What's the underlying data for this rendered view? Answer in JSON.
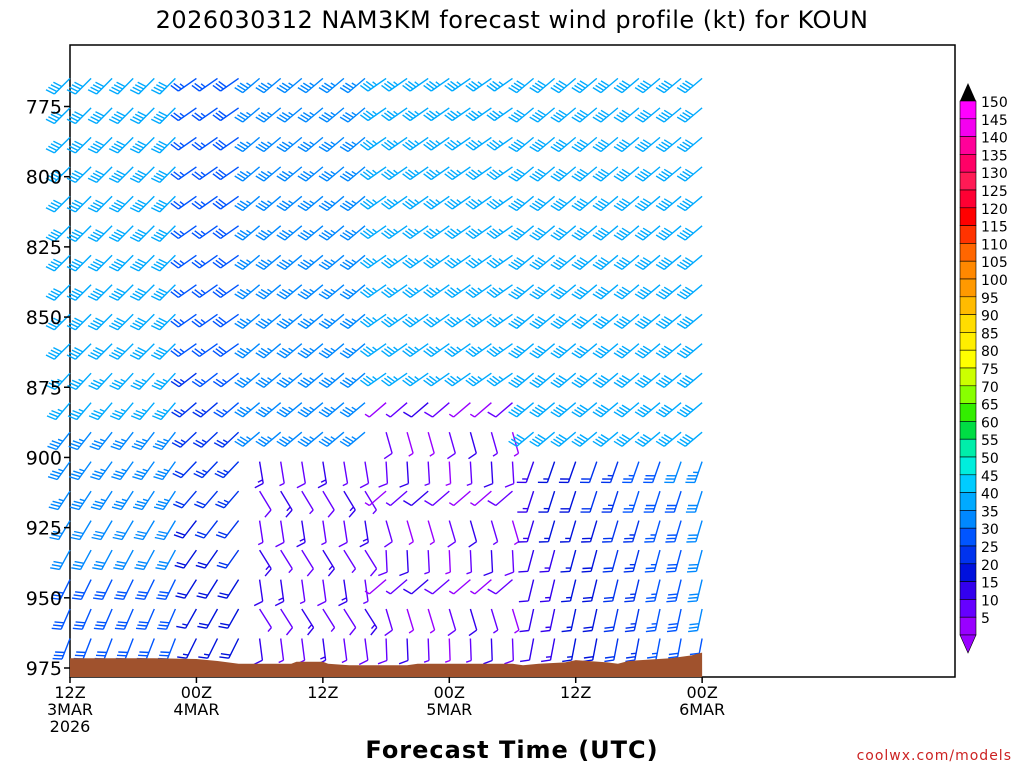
{
  "chart_data": {
    "type": "wind-barb-profile",
    "title": "2026030312 NAM3KM forecast wind profile (kt) for KOUN",
    "xlabel": "Forecast Time (UTC)",
    "ylabel": "",
    "credit": "coolwx.com/models",
    "x_hours": [
      0,
      84
    ],
    "x_ticks": [
      {
        "hour": 0,
        "lines": [
          "12Z",
          "3MAR",
          "2026"
        ]
      },
      {
        "hour": 12,
        "lines": [
          "00Z",
          "4MAR"
        ]
      },
      {
        "hour": 24,
        "lines": [
          "12Z"
        ]
      },
      {
        "hour": 36,
        "lines": [
          "00Z",
          "5MAR"
        ]
      },
      {
        "hour": 48,
        "lines": [
          "12Z"
        ]
      },
      {
        "hour": 60,
        "lines": [
          "00Z",
          "6MAR"
        ]
      }
    ],
    "y_pressure_top_hpa": 755,
    "y_pressure_bottom_hpa": 980,
    "y_ticks": [
      "775",
      "800",
      "825",
      "850",
      "875",
      "900",
      "925",
      "950",
      "975"
    ],
    "surface_pressure_hpa": [
      [
        0,
        971.5
      ],
      [
        4,
        971.5
      ],
      [
        8,
        971.5
      ],
      [
        12,
        971.8
      ],
      [
        14,
        972.5
      ],
      [
        16,
        973.5
      ],
      [
        21,
        973.5
      ],
      [
        21.5,
        972.8
      ],
      [
        24,
        972.8
      ],
      [
        24.5,
        973.5
      ],
      [
        26.5,
        974
      ],
      [
        32,
        974
      ],
      [
        33,
        973.5
      ],
      [
        36,
        973.5
      ],
      [
        42,
        973.5
      ],
      [
        43,
        974
      ],
      [
        44.5,
        973.5
      ],
      [
        47,
        973
      ],
      [
        48,
        972.2
      ],
      [
        51,
        973
      ],
      [
        52,
        973.5
      ],
      [
        53,
        972.5
      ],
      [
        57,
        971.5
      ],
      [
        59,
        970.5
      ],
      [
        60,
        969.5
      ]
    ],
    "colorbar": {
      "labels": [
        "150",
        "145",
        "140",
        "135",
        "130",
        "125",
        "120",
        "115",
        "110",
        "105",
        "100",
        "95",
        "90",
        "85",
        "80",
        "75",
        "70",
        "65",
        "60",
        "55",
        "50",
        "45",
        "40",
        "35",
        "30",
        "25",
        "20",
        "15",
        "10",
        "5"
      ],
      "colors": [
        "#ff00ff",
        "#f400f0",
        "#ff0099",
        "#ff0066",
        "#ff1a55",
        "#ff0033",
        "#ff0000",
        "#ff3300",
        "#ff6600",
        "#ff8800",
        "#ff9900",
        "#ffbb00",
        "#ffdd00",
        "#ffee00",
        "#ffff00",
        "#ccff00",
        "#88ff00",
        "#33ee00",
        "#00dd44",
        "#00eeaa",
        "#00eedd",
        "#00ccff",
        "#00aaff",
        "#0088ff",
        "#0055ff",
        "#0033ee",
        "#0011dd",
        "#3300ee",
        "#6600ff",
        "#9900ff"
      ]
    },
    "note": "Wind barbs every 2 h; speeds 5-45 kt, directions mainly SW-S aloft, light SE-S near surface from hour 18 onward."
  }
}
